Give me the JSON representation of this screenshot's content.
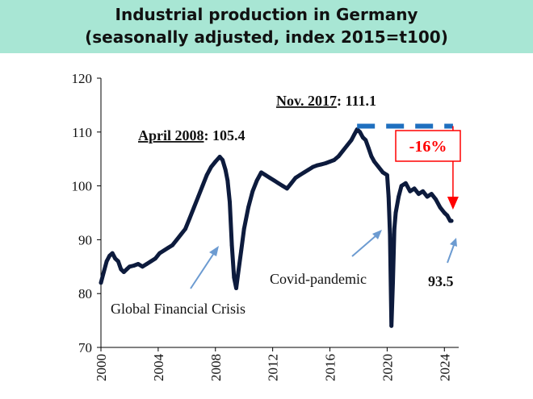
{
  "chart_data": {
    "type": "line",
    "title": "Industrial production in Germany",
    "subtitle": "(seasonally adjusted, index 2015=t100)",
    "xlabel": "",
    "ylabel": "",
    "xlim": [
      2000,
      2025
    ],
    "ylim": [
      70,
      120
    ],
    "x_ticks": [
      "2000",
      "2004",
      "2008",
      "2012",
      "2016",
      "2020",
      "2024"
    ],
    "y_ticks": [
      "70",
      "80",
      "90",
      "100",
      "110",
      "120"
    ],
    "series": [
      {
        "name": "Industrial production index",
        "color": "#0d1b3d",
        "x": [
          2000.0,
          2000.2,
          2000.4,
          2000.6,
          2000.8,
          2001.0,
          2001.2,
          2001.4,
          2001.6,
          2001.8,
          2002.0,
          2002.3,
          2002.6,
          2002.9,
          2003.2,
          2003.5,
          2003.8,
          2004.1,
          2004.4,
          2004.7,
          2005.0,
          2005.3,
          2005.6,
          2005.9,
          2006.2,
          2006.5,
          2006.8,
          2007.1,
          2007.4,
          2007.7,
          2008.0,
          2008.3,
          2008.5,
          2008.7,
          2008.85,
          2009.0,
          2009.15,
          2009.3,
          2009.45,
          2009.6,
          2009.8,
          2010.0,
          2010.3,
          2010.6,
          2010.9,
          2011.2,
          2011.5,
          2011.8,
          2012.1,
          2012.4,
          2012.7,
          2013.0,
          2013.3,
          2013.6,
          2013.9,
          2014.2,
          2014.5,
          2014.8,
          2015.1,
          2015.4,
          2015.7,
          2016.0,
          2016.3,
          2016.6,
          2016.9,
          2017.2,
          2017.5,
          2017.7,
          2017.9,
          2018.1,
          2018.3,
          2018.5,
          2018.7,
          2018.9,
          2019.1,
          2019.4,
          2019.7,
          2020.0,
          2020.1,
          2020.2,
          2020.3,
          2020.4,
          2020.5,
          2020.6,
          2020.8,
          2021.0,
          2021.3,
          2021.6,
          2021.9,
          2022.2,
          2022.5,
          2022.8,
          2023.1,
          2023.4,
          2023.7,
          2024.0,
          2024.2,
          2024.4,
          2024.5
        ],
        "values": [
          82,
          84,
          86,
          87,
          87.5,
          86.5,
          86,
          84.5,
          84,
          84.5,
          85,
          85.2,
          85.5,
          85,
          85.5,
          86,
          86.5,
          87.5,
          88,
          88.5,
          89,
          90,
          91,
          92,
          94,
          96,
          98,
          100,
          102,
          103.5,
          104.5,
          105.4,
          104.8,
          103,
          101,
          97,
          89,
          83,
          81,
          84,
          88,
          92,
          96,
          99,
          101,
          102.5,
          102,
          101.5,
          101,
          100.5,
          100,
          99.5,
          100.5,
          101.5,
          102,
          102.5,
          103,
          103.5,
          103.8,
          104,
          104.2,
          104.5,
          104.8,
          105.5,
          106.5,
          107.5,
          108.5,
          109.5,
          110.5,
          110,
          109,
          108.5,
          107,
          105.5,
          104.5,
          103.5,
          102.5,
          102,
          98,
          91,
          74,
          82,
          92,
          95,
          98,
          100,
          100.5,
          99,
          99.5,
          98.5,
          99,
          98,
          98.5,
          97.5,
          96,
          95,
          94.5,
          93.5,
          93.5
        ]
      }
    ],
    "peak_reference": {
      "label": "Nov. 2017",
      "value_text": ": 111.1",
      "value": 111.1,
      "from_x": 2017.9,
      "to_x": 2024.6
    },
    "decline": {
      "label": "-16%",
      "from_value": 111.1,
      "to_value": 93.5,
      "x": 2024.6
    },
    "annotations": [
      {
        "id": "april2008",
        "label": "April 2008",
        "value_text": ": 105.4"
      },
      {
        "id": "gfc",
        "label": "Global Financial Crisis"
      },
      {
        "id": "covid",
        "label": "Covid-pandemic"
      },
      {
        "id": "last",
        "label": "93.5"
      }
    ],
    "colors": {
      "line": "#0d1b3d",
      "reference": "#1f6fbf",
      "decline": "#ff0000",
      "arrows": "#6c9bd1",
      "title_band": "#a8e6d4"
    }
  }
}
